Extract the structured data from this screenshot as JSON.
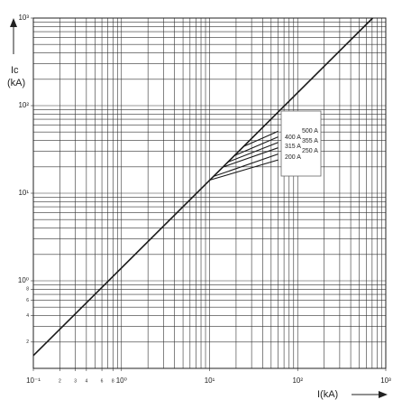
{
  "chart_data": {
    "type": "line",
    "log_x": true,
    "log_y": true,
    "grid": true,
    "color": "#1a1a1a",
    "y_label": "Ic",
    "y_unit": "(kA)",
    "x_label": "I(kA)",
    "xlim": [
      0.1,
      1000
    ],
    "ylim": [
      0.1,
      1000
    ],
    "xticks": [
      {
        "value": 0.1,
        "label": "10⁻¹"
      },
      {
        "value": 0.2,
        "label": "2"
      },
      {
        "value": 0.3,
        "label": "3"
      },
      {
        "value": 0.4,
        "label": "4"
      },
      {
        "value": 0.6,
        "label": "6"
      },
      {
        "value": 0.8,
        "label": "8"
      },
      {
        "value": 1,
        "label": "10⁰"
      },
      {
        "value": 10,
        "label": "10¹"
      },
      {
        "value": 100,
        "label": "10²"
      },
      {
        "value": 1000,
        "label": "10³"
      }
    ],
    "yticks": [
      {
        "value": 0.2,
        "label": "2"
      },
      {
        "value": 0.4,
        "label": "4"
      },
      {
        "value": 0.6,
        "label": "6"
      },
      {
        "value": 0.8,
        "label": "8"
      },
      {
        "value": 1,
        "label": "10⁰"
      },
      {
        "value": 10,
        "label": "10¹"
      },
      {
        "value": 100,
        "label": "10²"
      },
      {
        "value": 1000,
        "label": "10³"
      }
    ],
    "xgrid": [
      0.1,
      0.2,
      0.3,
      0.4,
      0.5,
      0.6,
      0.7,
      0.8,
      0.9,
      1,
      2,
      3,
      4,
      5,
      6,
      7,
      8,
      9,
      10,
      20,
      30,
      40,
      50,
      60,
      70,
      80,
      90,
      100,
      200,
      300,
      400,
      500,
      600,
      700,
      800,
      900,
      1000
    ],
    "ygrid": [
      0.1,
      0.2,
      0.3,
      0.4,
      0.5,
      0.6,
      0.7,
      0.8,
      0.9,
      1,
      2,
      3,
      4,
      5,
      6,
      7,
      8,
      9,
      10,
      20,
      30,
      40,
      50,
      60,
      70,
      80,
      90,
      100,
      200,
      300,
      400,
      500,
      600,
      700,
      800,
      900,
      1000
    ],
    "series": [
      {
        "x": [
          0.1,
          710
        ],
        "values": [
          0.14,
          1000
        ]
      },
      {
        "name": "500 A",
        "x": [
          24,
          60
        ],
        "values": [
          34,
          51
        ]
      },
      {
        "name": "400 A",
        "x": [
          19,
          60
        ],
        "values": [
          26.8,
          44
        ]
      },
      {
        "name": "355 A",
        "x": [
          16,
          60
        ],
        "values": [
          22.6,
          38
        ]
      },
      {
        "name": "315 A",
        "x": [
          14,
          60
        ],
        "values": [
          19.8,
          33
        ]
      },
      {
        "name": "250 A",
        "x": [
          11,
          60
        ],
        "values": [
          15.5,
          28
        ]
      },
      {
        "name": "200 A",
        "x": [
          10,
          60
        ],
        "values": [
          14.1,
          24
        ]
      }
    ]
  }
}
